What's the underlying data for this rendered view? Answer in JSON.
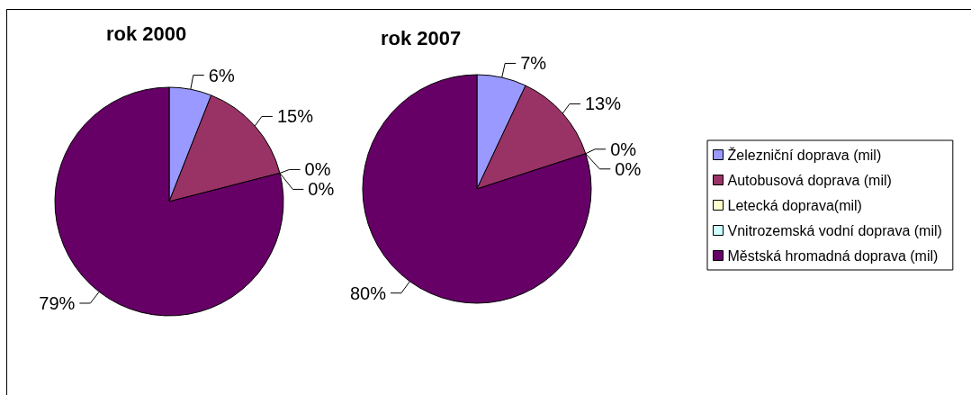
{
  "chart_data": {
    "type": "pie",
    "categories": [
      "Železniční doprava (mil)",
      "Autobusová doprava (mil)",
      "Letecká doprava(mil)",
      "Vnitrozemská vodní doprava (mil)",
      "Městská hromadná doprava (mil)"
    ],
    "colors": [
      "#9999ff",
      "#993366",
      "#ffffcc",
      "#ccffff",
      "#660066"
    ],
    "legend": "right",
    "series": [
      {
        "name": "rok 2000",
        "values": [
          6,
          15,
          0,
          0,
          79
        ],
        "value_labels": [
          "6%",
          "15%",
          "0%",
          "0%",
          "79%"
        ]
      },
      {
        "name": "rok 2007",
        "values": [
          7,
          13,
          0,
          0,
          80
        ],
        "value_labels": [
          "7%",
          "13%",
          "0%",
          "0%",
          "80%"
        ]
      }
    ]
  }
}
